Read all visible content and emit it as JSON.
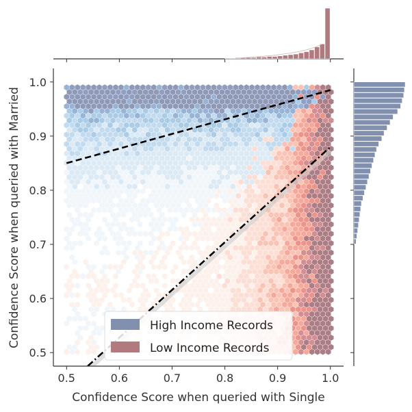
{
  "chart_data": {
    "type": "scatter",
    "subtype": "hexbin-joint-plot",
    "xlabel": "Confidence Score when queried with Single",
    "ylabel": "Confidence Score when queried with Married",
    "xlim": [
      0.475,
      1.025
    ],
    "ylim": [
      0.475,
      1.025
    ],
    "xticks": [
      "0.5",
      "0.6",
      "0.7",
      "0.8",
      "0.9",
      "1.0"
    ],
    "yticks": [
      "0.5",
      "0.6",
      "0.7",
      "0.8",
      "0.9",
      "1.0"
    ],
    "series": [
      {
        "name": "High Income Records",
        "color": "#8290b0",
        "cmap": "Blues"
      },
      {
        "name": "Low Income Records",
        "color": "#b07a7e",
        "cmap": "Reds"
      }
    ],
    "fit_lines": [
      {
        "series": "High Income Records",
        "style": "dashed",
        "x": [
          0.5,
          1.0
        ],
        "y": [
          0.85,
          0.985
        ]
      },
      {
        "series": "Low Income Records",
        "style": "dashdot",
        "x": [
          0.54,
          1.0
        ],
        "y": [
          0.475,
          0.88
        ]
      }
    ],
    "marginal_x": {
      "series": "Low Income Records",
      "bins": [
        0.8,
        0.81,
        0.82,
        0.83,
        0.84,
        0.85,
        0.86,
        0.87,
        0.88,
        0.89,
        0.9,
        0.91,
        0.92,
        0.93,
        0.94,
        0.95,
        0.96,
        0.97,
        0.98,
        0.99
      ],
      "counts": [
        1,
        1,
        1,
        2,
        2,
        2,
        3,
        3,
        4,
        4,
        5,
        6,
        7,
        8,
        10,
        12,
        15,
        20,
        25,
        85
      ]
    },
    "marginal_y": {
      "series": "High Income Records",
      "bins": [
        0.99,
        0.98,
        0.97,
        0.96,
        0.95,
        0.94,
        0.93,
        0.92,
        0.91,
        0.9,
        0.89,
        0.88,
        0.87,
        0.86,
        0.85,
        0.84,
        0.83,
        0.82,
        0.81,
        0.8,
        0.79,
        0.78,
        0.77,
        0.76,
        0.75,
        0.74,
        0.73,
        0.72,
        0.71,
        0.7
      ],
      "counts": [
        68,
        67,
        66,
        64,
        62,
        58,
        52,
        48,
        44,
        40,
        37,
        33,
        30,
        28,
        26,
        24,
        22,
        20,
        18,
        16,
        14,
        12,
        10,
        9,
        8,
        7,
        6,
        5,
        4,
        3
      ]
    },
    "legend": {
      "position": "lower-center"
    }
  }
}
